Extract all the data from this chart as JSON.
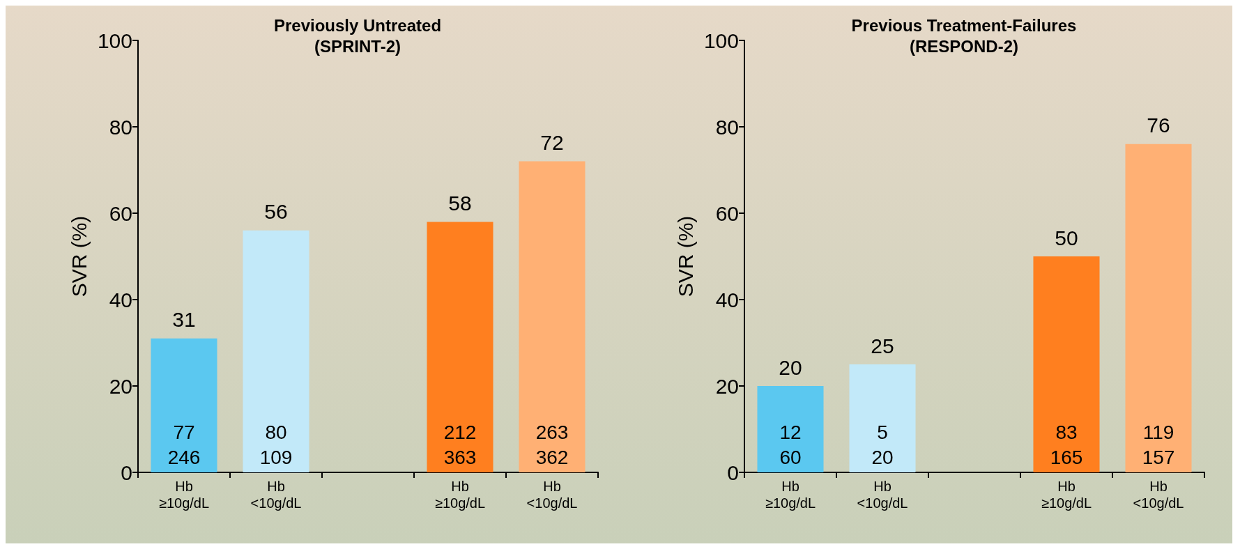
{
  "chart_data": [
    {
      "type": "bar",
      "title": "Previously Untreated\n(SPRINT-2)",
      "ylabel": "SVR (%)",
      "categories": [
        "Hb\n≥10g/dL",
        "Hb\n<10g/dL",
        null,
        "Hb\n≥10g/dL",
        "Hb\n<10g/dL"
      ],
      "values": [
        31,
        56,
        null,
        58,
        72
      ],
      "colors": [
        "#5bc8f0",
        "#c2e9f9",
        null,
        "#ff7f1f",
        "#ffb074"
      ],
      "data_labels": true,
      "annotations": [
        "77\n246",
        "80\n109",
        null,
        "212\n363",
        "263\n362"
      ],
      "ylim": [
        0,
        100
      ],
      "yticks": [
        0,
        20,
        40,
        60,
        80,
        100
      ],
      "grid": false
    },
    {
      "type": "bar",
      "title": "Previous Treatment-Failures\n(RESPOND-2)",
      "ylabel": "SVR (%)",
      "categories": [
        "Hb\n≥10g/dL",
        "Hb\n<10g/dL",
        null,
        "Hb\n≥10g/dL",
        "Hb\n<10g/dL"
      ],
      "values": [
        20,
        25,
        null,
        50,
        76
      ],
      "colors": [
        "#5bc8f0",
        "#c2e9f9",
        null,
        "#ff7f1f",
        "#ffb074"
      ],
      "data_labels": true,
      "annotations": [
        "12\n60",
        "5\n20",
        null,
        "83\n165",
        "119\n157"
      ],
      "ylim": [
        0,
        100
      ],
      "yticks": [
        0,
        20,
        40,
        60,
        80,
        100
      ],
      "grid": false
    }
  ]
}
